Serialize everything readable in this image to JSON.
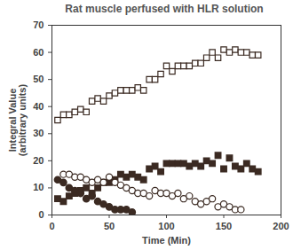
{
  "chart_data": {
    "type": "scatter",
    "title": "Rat muscle perfused with HLR solution",
    "xlabel": "Time (Min)",
    "ylabel": "Integral Value\n(arbitrary units)",
    "xlim": [
      0,
      200
    ],
    "xticks": [
      0,
      50,
      100,
      150,
      200
    ],
    "ylim": [
      0,
      70
    ],
    "yticks": [
      0,
      10,
      20,
      30,
      40,
      50,
      60,
      70
    ],
    "grid": false,
    "series": [
      {
        "marker": "open_square",
        "color": "#3b2a22",
        "x": [
          5,
          10,
          15,
          20,
          25,
          30,
          35,
          40,
          45,
          50,
          55,
          60,
          65,
          70,
          75,
          80,
          85,
          90,
          95,
          100,
          105,
          110,
          115,
          120,
          125,
          130,
          135,
          140,
          145,
          150,
          155,
          160,
          165,
          170,
          175,
          180
        ],
        "values": [
          35,
          37,
          37,
          38,
          39,
          38,
          42,
          43,
          42,
          44,
          45,
          46,
          46,
          46,
          47,
          46,
          50,
          50,
          52,
          55,
          53,
          55,
          55,
          55,
          56,
          56,
          58,
          60,
          58,
          61,
          60,
          61,
          60,
          60,
          59,
          59
        ]
      },
      {
        "marker": "filled_square",
        "color": "#3b2a22",
        "x": [
          5,
          10,
          15,
          20,
          25,
          30,
          35,
          40,
          45,
          50,
          55,
          60,
          65,
          70,
          75,
          80,
          85,
          90,
          95,
          100,
          105,
          110,
          115,
          120,
          125,
          130,
          135,
          140,
          145,
          150,
          155,
          160,
          165,
          170,
          175,
          180
        ],
        "values": [
          6,
          5,
          7,
          8,
          9,
          10,
          8,
          10,
          12,
          12,
          13,
          15,
          14,
          15,
          14,
          13,
          17,
          18,
          16,
          19,
          19,
          19,
          19,
          18,
          19,
          18,
          20,
          19,
          22,
          17,
          21,
          18,
          17,
          19,
          17,
          16
        ]
      },
      {
        "marker": "open_circle",
        "color": "#3b2a22",
        "x": [
          10,
          15,
          20,
          25,
          30,
          35,
          40,
          45,
          50,
          55,
          60,
          65,
          70,
          75,
          80,
          85,
          90,
          95,
          100,
          105,
          110,
          115,
          120,
          125,
          130,
          135,
          140,
          145,
          150,
          155,
          160,
          165
        ],
        "values": [
          15,
          15,
          14,
          14,
          13,
          12,
          13,
          12,
          14,
          12,
          11,
          10,
          9,
          8,
          8,
          7,
          9,
          8,
          8,
          7,
          8,
          6,
          7,
          5,
          4,
          5,
          6,
          3,
          4,
          3,
          2,
          2
        ]
      },
      {
        "marker": "filled_circle",
        "color": "#3b2a22",
        "x": [
          5,
          10,
          15,
          20,
          25,
          30,
          35,
          40,
          45,
          50,
          55,
          60,
          65,
          70
        ],
        "values": [
          13,
          12,
          10,
          9,
          8,
          6,
          7,
          5,
          4,
          3,
          2,
          2,
          2,
          1
        ]
      }
    ]
  }
}
